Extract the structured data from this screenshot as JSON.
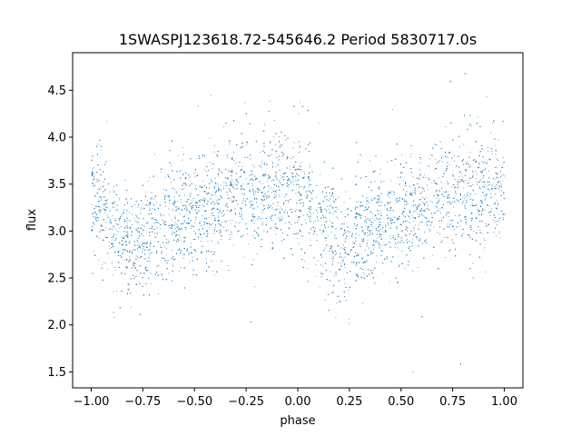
{
  "chart_data": {
    "type": "scatter",
    "title": "1SWASPJ123618.72-545646.2 Period 5830717.0s",
    "xlabel": "phase",
    "ylabel": "flux",
    "xlim": [
      -1.09,
      1.09
    ],
    "ylim": [
      1.33,
      4.9
    ],
    "x_ticks": [
      -1.0,
      -0.75,
      -0.5,
      -0.25,
      0.0,
      0.25,
      0.5,
      0.75,
      1.0
    ],
    "x_tick_labels": [
      "−1.00",
      "−0.75",
      "−0.50",
      "−0.25",
      "0.00",
      "0.25",
      "0.50",
      "0.75",
      "1.00"
    ],
    "y_ticks": [
      1.5,
      2.0,
      2.5,
      3.0,
      3.5,
      4.0,
      4.5
    ],
    "y_tick_labels": [
      "1.5",
      "2.0",
      "2.5",
      "3.0",
      "3.5",
      "4.0",
      "4.5"
    ],
    "grid": false,
    "point_color": "#1f77b4",
    "series": [
      {
        "x_range": [
          -1.0,
          1.0
        ],
        "profile_phase": [
          0.0,
          0.05,
          0.1,
          0.15,
          0.2,
          0.25,
          0.3,
          0.35,
          0.4,
          0.45,
          0.5,
          0.55,
          0.6,
          0.65,
          0.7,
          0.75,
          0.8,
          0.85,
          0.9,
          0.95,
          1.0
        ],
        "profile_mean_flux": [
          3.4,
          3.25,
          3.05,
          2.95,
          2.85,
          2.9,
          3.0,
          3.05,
          3.1,
          3.15,
          3.2,
          3.25,
          3.2,
          3.35,
          3.45,
          3.45,
          3.4,
          3.4,
          3.45,
          3.5,
          3.4
        ],
        "typical_scatter": 0.3,
        "flux_range": [
          1.5,
          4.7
        ],
        "approx_point_count": 9000
      }
    ]
  }
}
